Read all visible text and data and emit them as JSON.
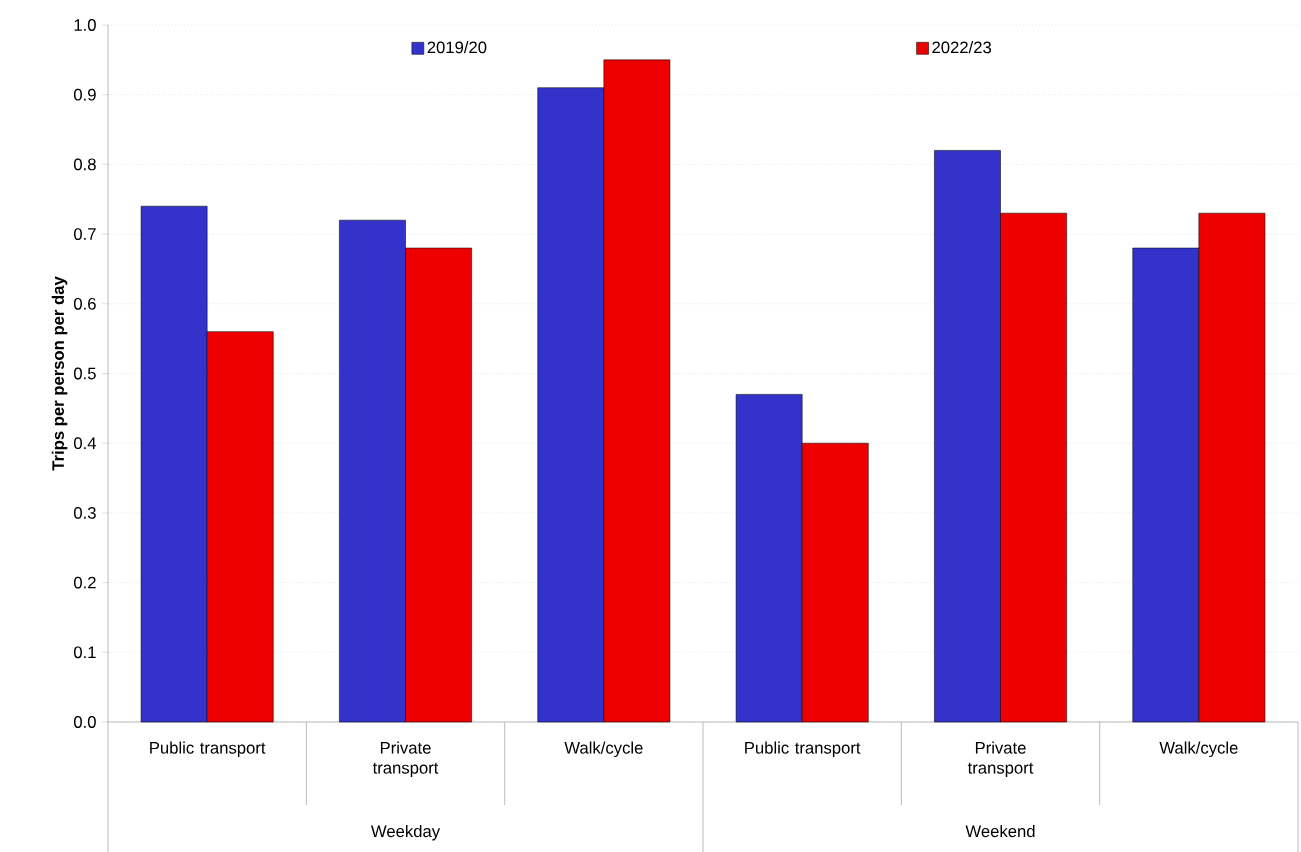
{
  "chart_data": {
    "type": "bar",
    "ylabel": "Trips per person per day",
    "categories": [
      "Public transport",
      "Private transport",
      "Walk/cycle",
      "Public transport",
      "Private transport",
      "Walk/cycle"
    ],
    "series": [
      {
        "name": "2019/20",
        "color": "#3333cc",
        "values": [
          0.74,
          0.72,
          0.91,
          0.47,
          0.82,
          0.68
        ]
      },
      {
        "name": "2022/23",
        "color": "#ee0000",
        "values": [
          0.56,
          0.68,
          0.95,
          0.4,
          0.73,
          0.73
        ]
      }
    ],
    "annotations": [
      "Weekday",
      "Weekend"
    ],
    "ylim": [
      0,
      1.0
    ],
    "yticks": [
      {
        "value": 0,
        "label": "0.0"
      },
      0.1,
      0.2,
      0.3,
      0.4,
      0.5,
      0.6,
      0.7,
      0.8,
      0.9,
      {
        "value": 1.0,
        "label": "1.0"
      }
    ],
    "grid": "y",
    "legend": "top"
  }
}
